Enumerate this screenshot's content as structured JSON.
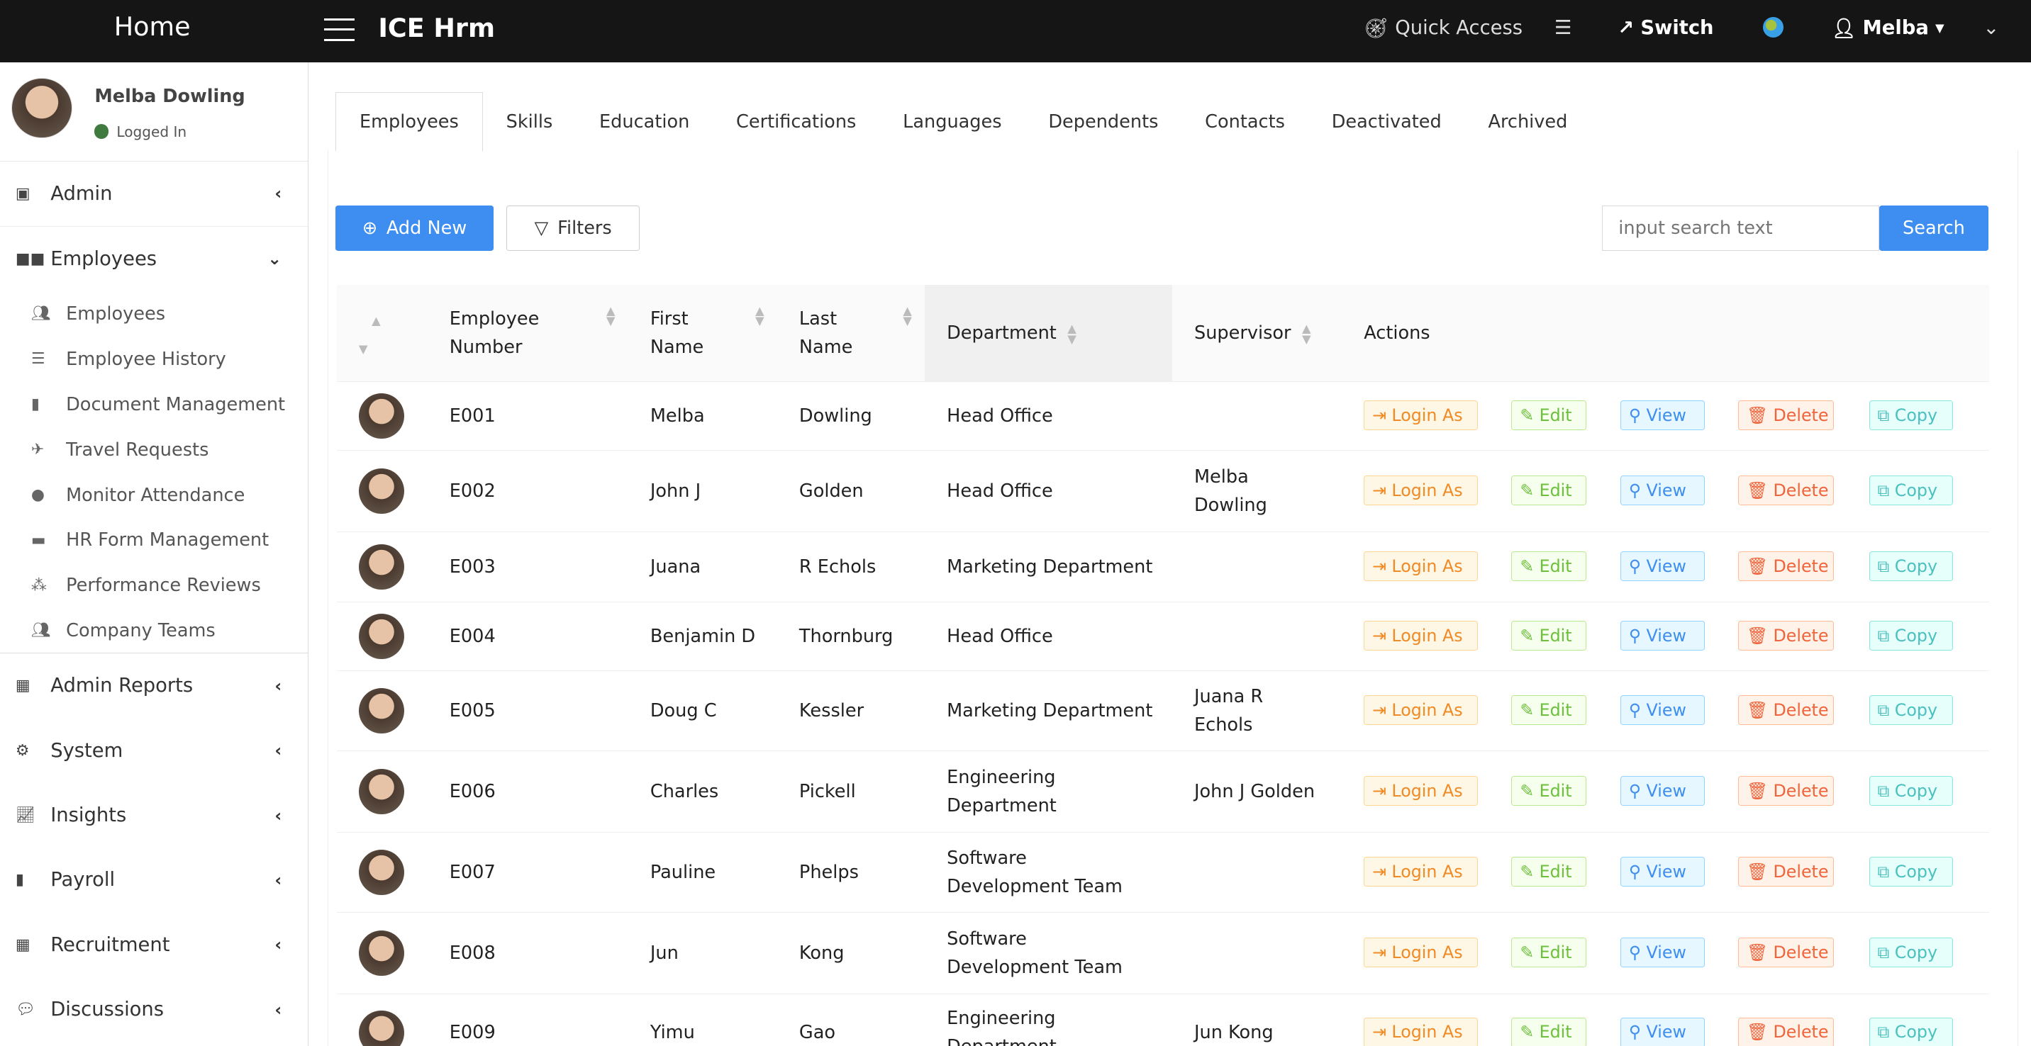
{
  "header": {
    "home": "Home",
    "app": "ICE Hrm",
    "quick_access": "Quick Access",
    "switch": "Switch",
    "user": "Melba"
  },
  "sidebar": {
    "user_name": "Melba Dowling",
    "status": "Logged In",
    "items": [
      {
        "label": "Admin",
        "icon": "cubes-icon"
      },
      {
        "label": "Employees",
        "icon": "grid-icon"
      }
    ],
    "sub": [
      {
        "label": "Employees",
        "icon": "users-icon"
      },
      {
        "label": "Employee History",
        "icon": "list-check-icon"
      },
      {
        "label": "Document Management",
        "icon": "file-icon"
      },
      {
        "label": "Travel Requests",
        "icon": "plane-icon"
      },
      {
        "label": "Monitor Attendance",
        "icon": "clock-icon"
      },
      {
        "label": "HR Form Management",
        "icon": "folder-icon"
      },
      {
        "label": "Performance Reviews",
        "icon": "network-icon"
      },
      {
        "label": "Company Teams",
        "icon": "users-icon"
      }
    ],
    "items2": [
      {
        "label": "Admin Reports",
        "icon": "box-icon"
      },
      {
        "label": "System",
        "icon": "gears-icon"
      },
      {
        "label": "Insights",
        "icon": "chart-line-icon"
      },
      {
        "label": "Payroll",
        "icon": "invoice-icon"
      },
      {
        "label": "Recruitment",
        "icon": "grid-icon"
      },
      {
        "label": "Discussions",
        "icon": "comments-icon"
      }
    ]
  },
  "tabs": [
    "Employees",
    "Skills",
    "Education",
    "Certifications",
    "Languages",
    "Dependents",
    "Contacts",
    "Deactivated",
    "Archived"
  ],
  "toolbar": {
    "add_new": "Add New",
    "filters": "Filters",
    "search_placeholder": "input search text",
    "search": "Search"
  },
  "table": {
    "headers": [
      "Employee Number",
      "First Name",
      "Last Name",
      "Department",
      "Supervisor",
      "Actions"
    ],
    "actions": {
      "login_as": "Login As",
      "edit": "Edit",
      "view": "View",
      "delete": "Delete",
      "copy": "Copy"
    },
    "rows": [
      {
        "num": "E001",
        "first": "Melba",
        "last": "Dowling",
        "dept": "Head Office",
        "sup": ""
      },
      {
        "num": "E002",
        "first": "John J",
        "last": "Golden",
        "dept": "Head Office",
        "sup": "Melba Dowling"
      },
      {
        "num": "E003",
        "first": "Juana",
        "last": "R Echols",
        "dept": "Marketing Department",
        "sup": ""
      },
      {
        "num": "E004",
        "first": "Benjamin D",
        "last": "Thornburg",
        "dept": "Head Office",
        "sup": ""
      },
      {
        "num": "E005",
        "first": "Doug C",
        "last": "Kessler",
        "dept": "Marketing Department",
        "sup": "Juana R Echols"
      },
      {
        "num": "E006",
        "first": "Charles",
        "last": "Pickell",
        "dept": "Engineering Department",
        "sup": "John J Golden"
      },
      {
        "num": "E007",
        "first": "Pauline",
        "last": "Phelps",
        "dept": "Software Development Team",
        "sup": ""
      },
      {
        "num": "E008",
        "first": "Jun",
        "last": "Kong",
        "dept": "Software Development Team",
        "sup": ""
      },
      {
        "num": "E009",
        "first": "Yimu",
        "last": "Gao",
        "dept": "Engineering Department",
        "sup": "Jun   Kong"
      }
    ]
  },
  "colors": {
    "primary": "#3d8ef0",
    "login": "#f08a24",
    "edit": "#6cc03c",
    "view": "#3d8ef0",
    "delete": "#f0643c",
    "copy": "#4bc0c0"
  }
}
